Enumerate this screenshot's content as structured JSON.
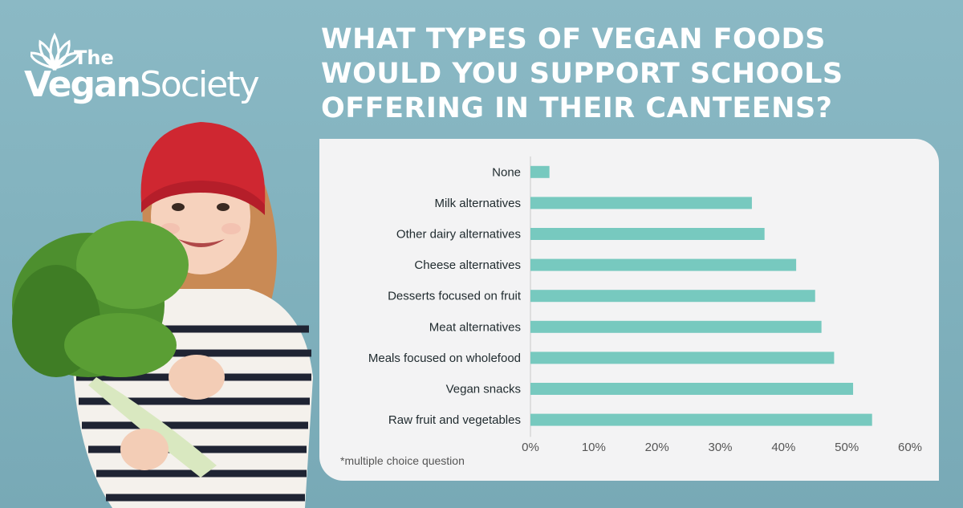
{
  "logo": {
    "the": "The",
    "vegan": "Vegan",
    "society": "Society"
  },
  "headline": "WHAT TYPES OF VEGAN FOODS WOULD YOU SUPPORT SCHOOLS OFFERING IN THEIR CANTEENS?",
  "footnote": "*multiple choice question",
  "colors": {
    "bar": "#77c9bf",
    "background": "#82b3bf",
    "card": "#f3f3f4",
    "text": "#1f2a2e"
  },
  "chart_data": {
    "type": "bar",
    "orientation": "horizontal",
    "categories": [
      "None",
      "Milk alternatives",
      "Other dairy alternatives",
      "Cheese alternatives",
      "Desserts focused on fruit",
      "Meat alternatives",
      "Meals focused on wholefood",
      "Vegan snacks",
      "Raw fruit and vegetables"
    ],
    "values": [
      3,
      35,
      37,
      42,
      45,
      46,
      48,
      51,
      54
    ],
    "xlim": [
      0,
      60
    ],
    "xticks": [
      "0%",
      "10%",
      "20%",
      "30%",
      "40%",
      "50%",
      "60%"
    ],
    "grid": false
  }
}
